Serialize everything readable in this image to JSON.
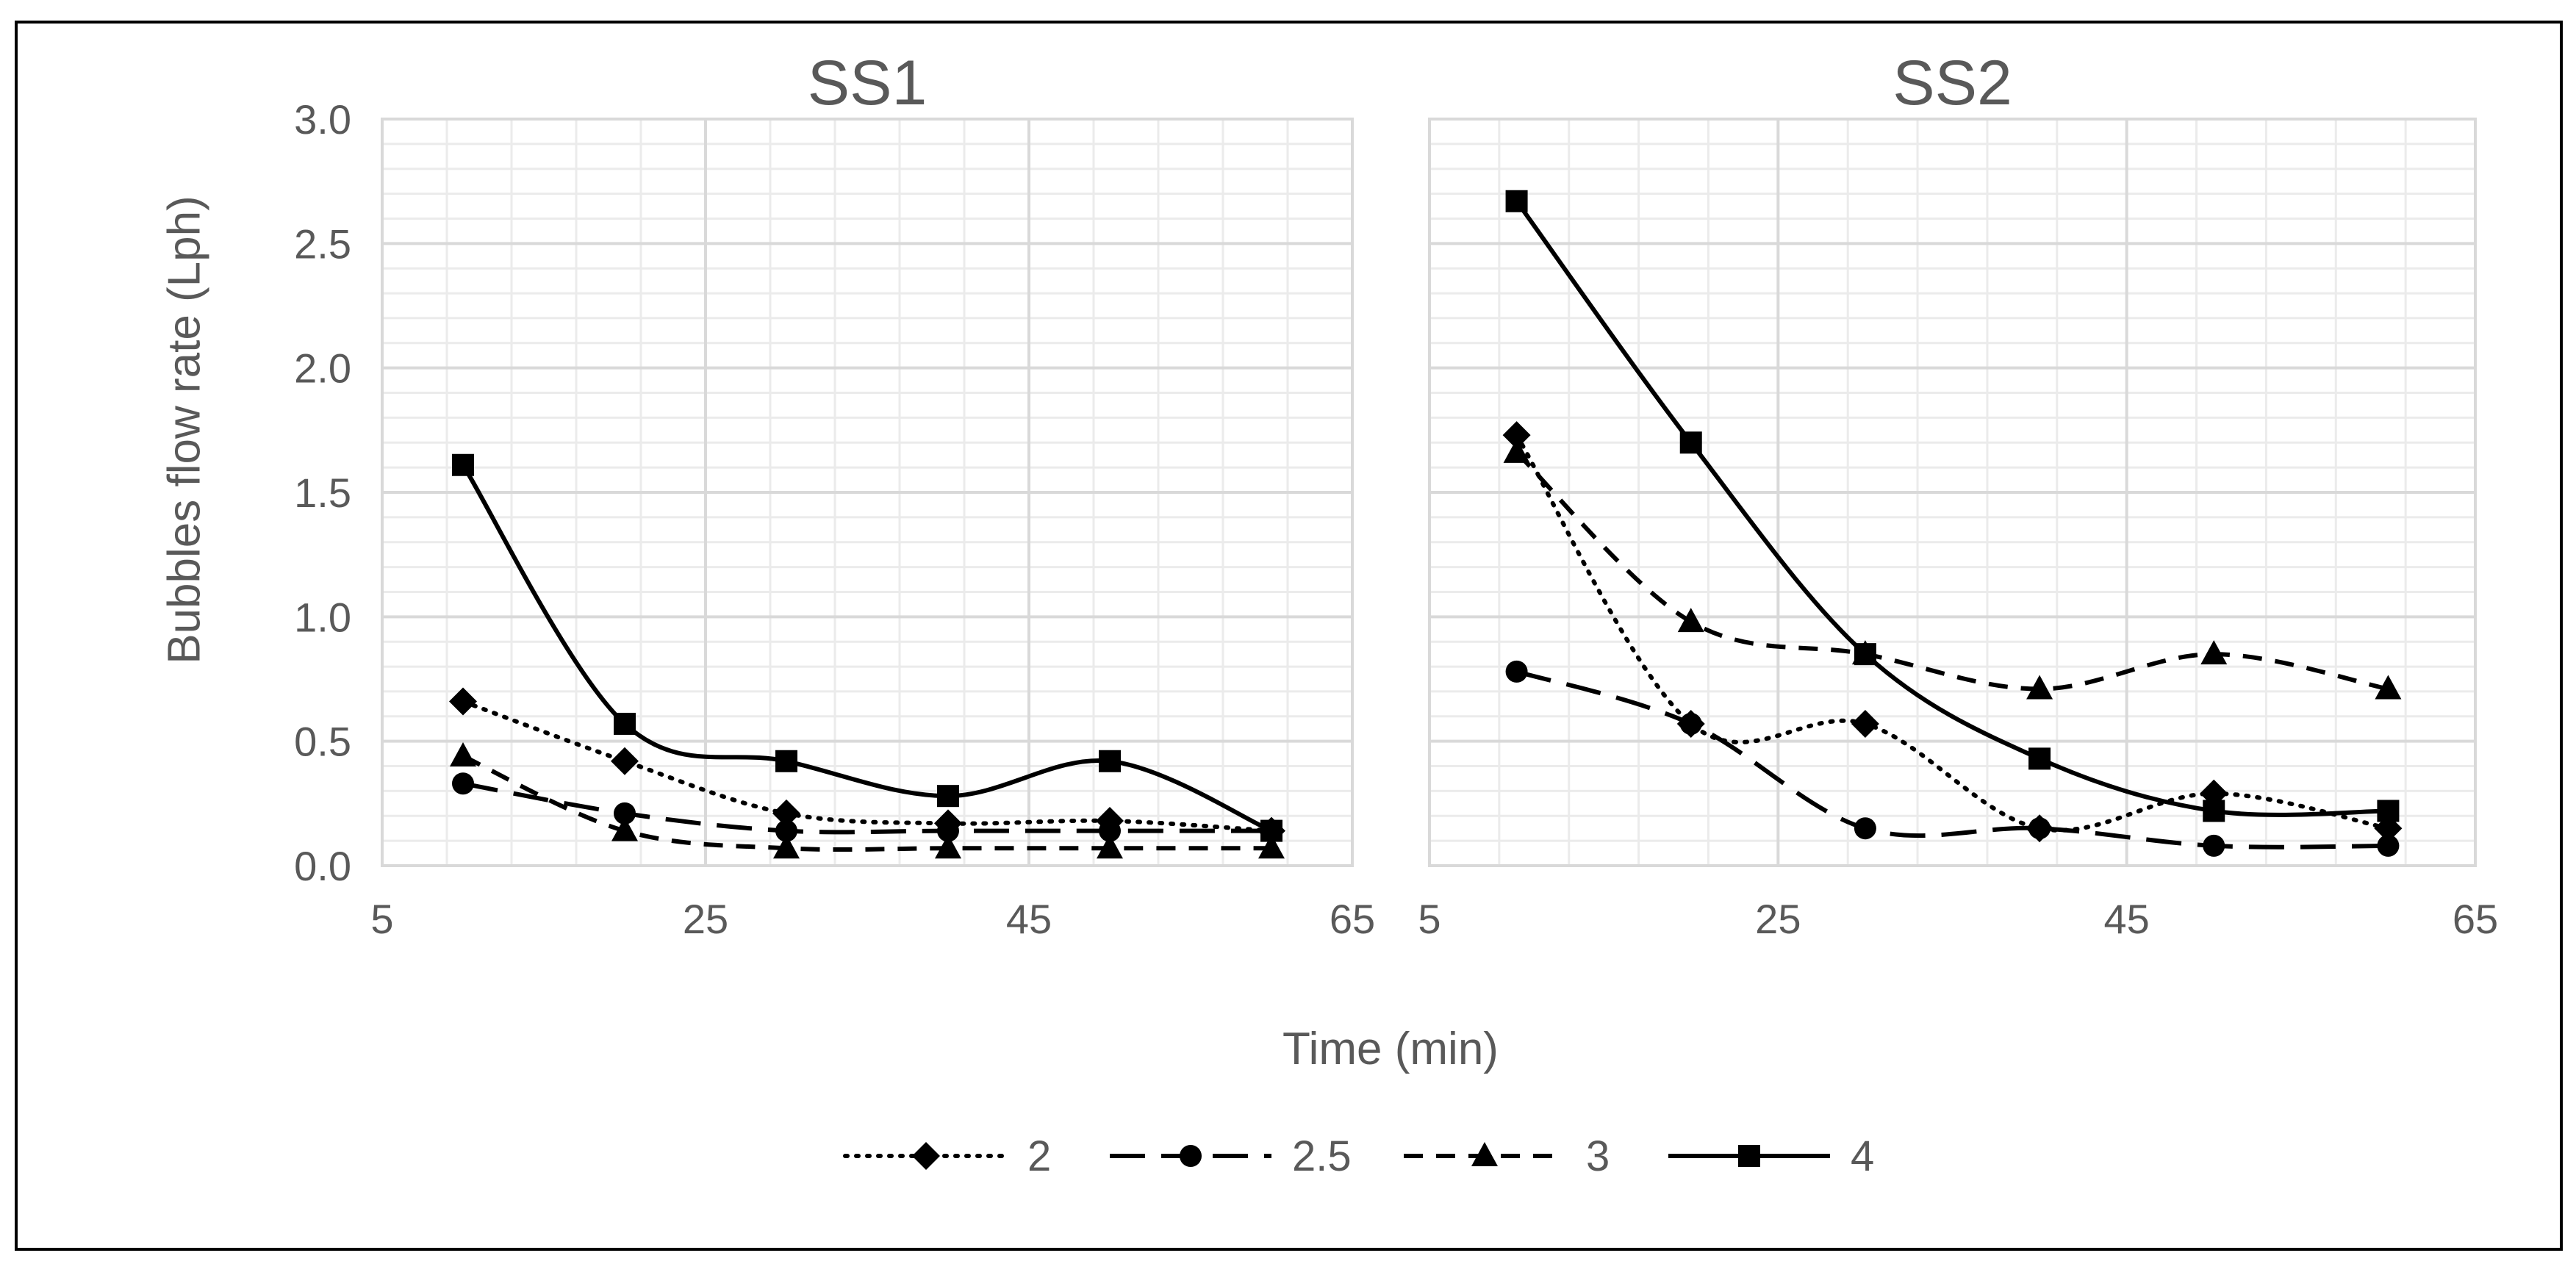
{
  "figure": {
    "ylabel": "Bubbles flow rate (Lph)",
    "xlabel": "Time (min)",
    "colors": {
      "line": "#000000",
      "text": "#595959",
      "grid_major": "#d9d9d9",
      "grid_minor": "#ebebeb",
      "frame": "#000000"
    }
  },
  "legend": {
    "position": "bottom-center",
    "items": [
      {
        "label": "2",
        "marker": "diamond",
        "dash": "dotted"
      },
      {
        "label": "2.5",
        "marker": "circle",
        "dash": "long-dash"
      },
      {
        "label": "3",
        "marker": "triangle",
        "dash": "dash"
      },
      {
        "label": "4",
        "marker": "square",
        "dash": "solid"
      }
    ]
  },
  "chart_data": [
    {
      "type": "line",
      "title": "SS1",
      "xlabel": "Time (min)",
      "ylabel": "Bubbles flow rate (Lph)",
      "xlim": [
        5,
        65
      ],
      "ylim": [
        0,
        3
      ],
      "x_ticks": [
        "5",
        "25",
        "45",
        "65"
      ],
      "y_ticks": [
        "0.0",
        "0.5",
        "1.0",
        "1.5",
        "2.0",
        "2.5",
        "3.0"
      ],
      "grid": true,
      "x": [
        10,
        20,
        30,
        40,
        50,
        60
      ],
      "series": [
        {
          "name": "2",
          "values": [
            0.66,
            0.42,
            0.21,
            0.17,
            0.18,
            0.14
          ]
        },
        {
          "name": "2.5",
          "values": [
            0.33,
            0.21,
            0.14,
            0.14,
            0.14,
            0.14
          ]
        },
        {
          "name": "3",
          "values": [
            0.44,
            0.14,
            0.07,
            0.07,
            0.07,
            0.07
          ]
        },
        {
          "name": "4",
          "values": [
            1.61,
            0.57,
            0.42,
            0.28,
            0.42,
            0.14
          ]
        }
      ]
    },
    {
      "type": "line",
      "title": "SS2",
      "xlabel": "Time (min)",
      "ylabel": "Bubbles flow rate (Lph)",
      "xlim": [
        5,
        65
      ],
      "ylim": [
        0,
        3
      ],
      "x_ticks": [
        "5",
        "25",
        "45",
        "65"
      ],
      "grid": true,
      "x": [
        10,
        20,
        30,
        40,
        50,
        60
      ],
      "series": [
        {
          "name": "2",
          "values": [
            1.73,
            0.57,
            0.57,
            0.15,
            0.29,
            0.15
          ]
        },
        {
          "name": "2.5",
          "values": [
            0.78,
            0.57,
            0.15,
            0.15,
            0.08,
            0.08
          ]
        },
        {
          "name": "3",
          "values": [
            1.66,
            0.98,
            0.85,
            0.71,
            0.85,
            0.71
          ]
        },
        {
          "name": "4",
          "values": [
            2.67,
            1.7,
            0.85,
            0.43,
            0.22,
            0.22
          ]
        }
      ]
    }
  ]
}
